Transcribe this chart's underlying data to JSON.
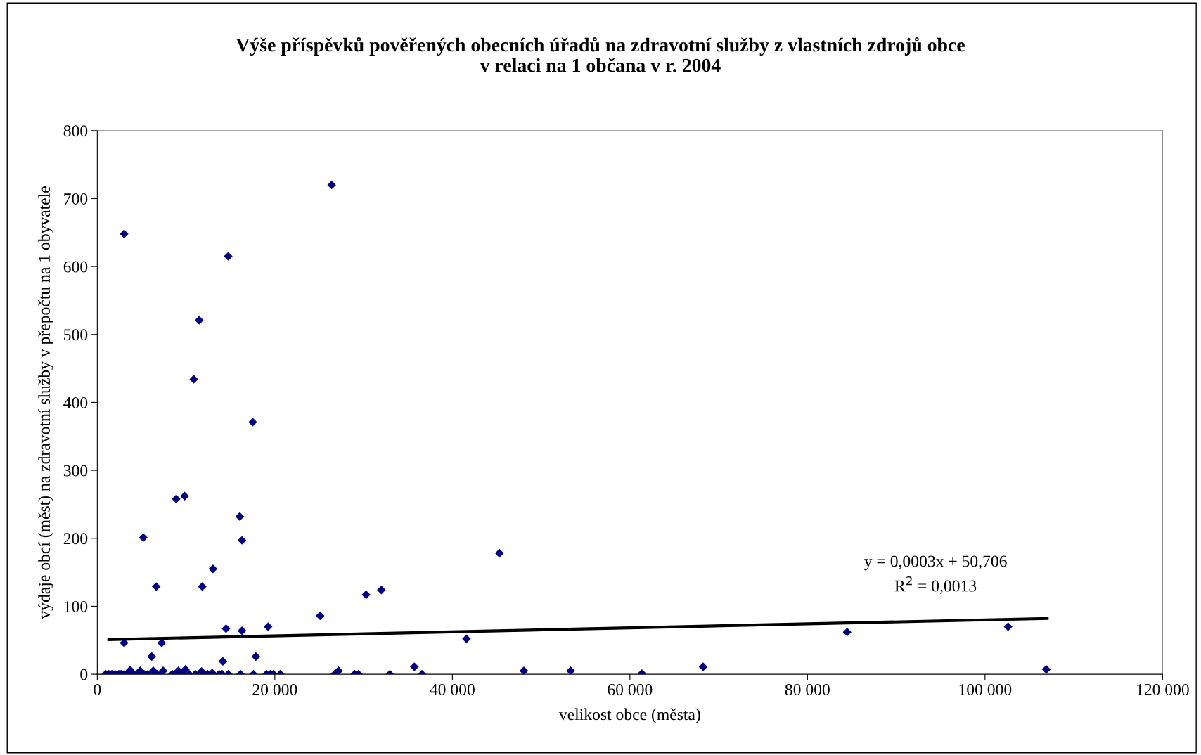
{
  "chart_data": {
    "type": "scatter",
    "title": "Výše příspěvků pověřených obecních úřadů na zdravotní služby z vlastních zdrojů obce\nv relaci na 1 občana v r. 2004",
    "xlabel": "velikost obce (města)",
    "ylabel": "výdaje obcí (měst) na zdravotní služby v přepočtu na 1 obyvatele",
    "xlim": [
      0,
      120000
    ],
    "xticks": [
      0,
      {
        "value": 20000,
        "label": "20 000"
      },
      {
        "value": 40000,
        "label": "40 000"
      },
      {
        "value": 60000,
        "label": "60 000"
      },
      {
        "value": 80000,
        "label": "80 000"
      },
      {
        "value": 100000,
        "label": "100 000"
      },
      {
        "value": 120000,
        "label": "120 000"
      }
    ],
    "ylim": [
      0,
      800
    ],
    "yticks": [
      0,
      100,
      200,
      300,
      400,
      500,
      600,
      700,
      800
    ],
    "series": [
      {
        "color": "#000080",
        "marker": "diamond",
        "x": [
          3020,
          26400,
          14750,
          11480,
          10870,
          17510,
          8890,
          9840,
          16050,
          5180,
          16300,
          45300,
          13030,
          6640,
          11820,
          32000,
          30280,
          25100,
          41590,
          19240,
          14500,
          16300,
          84470,
          102600,
          3020,
          7250,
          6130,
          17860,
          14150,
          68250,
          35720,
          106900,
          48060,
          53320,
          61350,
          950,
          1300,
          1640,
          2000,
          2420,
          2680,
          3020,
          3280,
          3710,
          4060,
          4400,
          4830,
          5260,
          5700,
          6300,
          6730,
          7160,
          7420,
          8450,
          8800,
          9150,
          9490,
          9920,
          10350,
          11050,
          11740,
          12080,
          12430,
          12940,
          13720,
          14060,
          14750,
          16130,
          17590,
          19060,
          19490,
          19840,
          20610,
          26740,
          27180,
          28990,
          29420,
          32960,
          36580
        ],
        "values": [
          648,
          720,
          615,
          521,
          434,
          371,
          258,
          262,
          232,
          201,
          197,
          178,
          155,
          129,
          129,
          124,
          117,
          86,
          52,
          70,
          67,
          64,
          62,
          70,
          46,
          46,
          26,
          26,
          19,
          11,
          11,
          7,
          5,
          5,
          1,
          0,
          0,
          0,
          0,
          0,
          0,
          0,
          0,
          6,
          0,
          0,
          5,
          0,
          0,
          5,
          0,
          0,
          5,
          0,
          0,
          5,
          0,
          7,
          0,
          0,
          4,
          0,
          0,
          2,
          0,
          0,
          0,
          0,
          0,
          0,
          0,
          0,
          0,
          0,
          5,
          0,
          0,
          0,
          0
        ]
      },
      {
        "type": "line",
        "color": "#000000",
        "marker": "none",
        "x": [
          1300,
          107000
        ],
        "values": [
          51,
          82
        ]
      }
    ],
    "annotations": [
      "y = 0,0003x + 50,706",
      "R$^{2}$ = 0,0013"
    ]
  }
}
